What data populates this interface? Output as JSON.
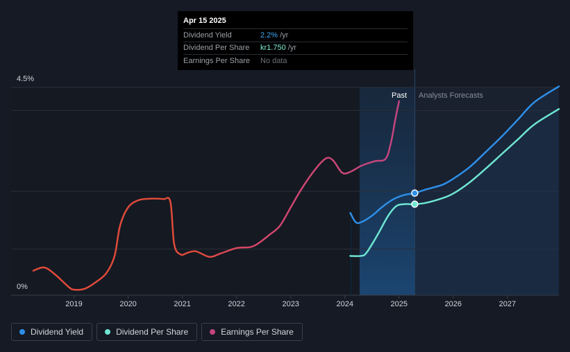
{
  "tooltip": {
    "date": "Apr 15 2025",
    "rows": [
      {
        "label": "Dividend Yield",
        "value": "2.2%",
        "unit": "/yr"
      },
      {
        "label": "Dividend Per Share",
        "value": "kr1.750",
        "unit": "/yr"
      },
      {
        "label": "Earnings Per Share",
        "value": "No data",
        "unit": ""
      }
    ]
  },
  "labels": {
    "past": "Past",
    "forecast": "Analysts Forecasts"
  },
  "legend": [
    {
      "label": "Dividend Yield",
      "color": "#2e8fe8"
    },
    {
      "label": "Dividend Per Share",
      "color": "#6ee6d2"
    },
    {
      "label": "Earnings Per Share",
      "color": "#c2457f"
    }
  ],
  "chart_data": {
    "type": "line",
    "y_tick_labels": [
      "4.5%",
      "0%"
    ],
    "ylim": [
      0,
      4.5
    ],
    "x_ticks": [
      "2019",
      "2020",
      "2021",
      "2022",
      "2023",
      "2024",
      "2025",
      "2026",
      "2027"
    ],
    "xlim": [
      2018.25,
      2027.95
    ],
    "past_region": [
      2024.27,
      2025.29
    ],
    "forecast_start": 2025.29,
    "grid": true,
    "legend_position": "bottom-left",
    "series": [
      {
        "name": "Dividend Yield",
        "color": "#2e8fe8",
        "points": [
          [
            2024.1,
            1.78
          ],
          [
            2024.2,
            1.58
          ],
          [
            2024.3,
            1.58
          ],
          [
            2024.5,
            1.72
          ],
          [
            2024.7,
            1.92
          ],
          [
            2024.9,
            2.08
          ],
          [
            2025.1,
            2.17
          ],
          [
            2025.29,
            2.21
          ],
          [
            2025.5,
            2.29
          ],
          [
            2025.8,
            2.39
          ],
          [
            2026.0,
            2.52
          ],
          [
            2026.3,
            2.77
          ],
          [
            2026.6,
            3.1
          ],
          [
            2026.9,
            3.44
          ],
          [
            2027.2,
            3.81
          ],
          [
            2027.5,
            4.18
          ],
          [
            2027.95,
            4.52
          ]
        ]
      },
      {
        "name": "Dividend Per Share",
        "color": "#6ee6d2",
        "points": [
          [
            2024.1,
            0.85
          ],
          [
            2024.3,
            0.85
          ],
          [
            2024.4,
            0.92
          ],
          [
            2024.6,
            1.3
          ],
          [
            2024.8,
            1.72
          ],
          [
            2024.95,
            1.93
          ],
          [
            2025.1,
            1.97
          ],
          [
            2025.29,
            1.97
          ],
          [
            2025.5,
            2.0
          ],
          [
            2025.8,
            2.1
          ],
          [
            2026.0,
            2.2
          ],
          [
            2026.3,
            2.44
          ],
          [
            2026.6,
            2.74
          ],
          [
            2026.9,
            3.06
          ],
          [
            2027.2,
            3.38
          ],
          [
            2027.5,
            3.7
          ],
          [
            2027.95,
            4.03
          ]
        ]
      },
      {
        "name": "Earnings Per Share",
        "color_start": "#e04a3a",
        "color_end": "#c2457f",
        "points": [
          [
            2018.25,
            0.53
          ],
          [
            2018.45,
            0.6
          ],
          [
            2018.65,
            0.45
          ],
          [
            2018.9,
            0.18
          ],
          [
            2019.0,
            0.12
          ],
          [
            2019.2,
            0.14
          ],
          [
            2019.4,
            0.28
          ],
          [
            2019.6,
            0.48
          ],
          [
            2019.75,
            0.85
          ],
          [
            2019.85,
            1.5
          ],
          [
            2020.0,
            1.9
          ],
          [
            2020.2,
            2.06
          ],
          [
            2020.45,
            2.09
          ],
          [
            2020.65,
            2.08
          ],
          [
            2020.78,
            2.02
          ],
          [
            2020.85,
            1.1
          ],
          [
            2020.97,
            0.88
          ],
          [
            2021.1,
            0.92
          ],
          [
            2021.25,
            0.95
          ],
          [
            2021.5,
            0.83
          ],
          [
            2021.7,
            0.9
          ],
          [
            2022.0,
            1.02
          ],
          [
            2022.25,
            1.04
          ],
          [
            2022.4,
            1.12
          ],
          [
            2022.6,
            1.3
          ],
          [
            2022.8,
            1.5
          ],
          [
            2023.0,
            1.9
          ],
          [
            2023.2,
            2.3
          ],
          [
            2023.45,
            2.72
          ],
          [
            2023.65,
            2.96
          ],
          [
            2023.78,
            2.92
          ],
          [
            2023.95,
            2.65
          ],
          [
            2024.1,
            2.67
          ],
          [
            2024.3,
            2.8
          ],
          [
            2024.55,
            2.9
          ],
          [
            2024.75,
            2.95
          ],
          [
            2024.85,
            3.3
          ],
          [
            2024.93,
            3.8
          ],
          [
            2025.0,
            4.2
          ]
        ]
      }
    ],
    "markers": [
      {
        "series": "Dividend Yield",
        "x": 2025.29,
        "y": 2.21
      },
      {
        "series": "Dividend Per Share",
        "x": 2025.29,
        "y": 1.97
      }
    ]
  }
}
